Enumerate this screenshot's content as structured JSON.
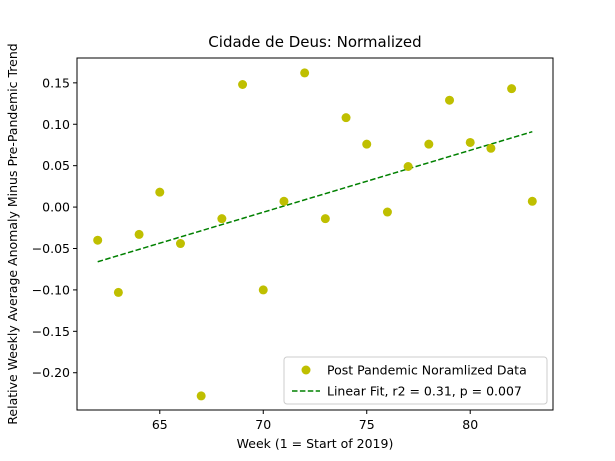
{
  "chart_data": {
    "type": "scatter",
    "title": "Cidade de Deus: Normalized",
    "xlabel": "Week (1 = Start of 2019)",
    "ylabel": "Relative Weekly Average Anomaly Minus Pre-Pandemic Trend",
    "xlim": [
      61,
      84
    ],
    "ylim": [
      -0.245,
      0.18
    ],
    "x_ticks": [
      65,
      70,
      75,
      80
    ],
    "x_tick_labels": [
      "65",
      "70",
      "75",
      "80"
    ],
    "y_ticks": [
      -0.2,
      -0.15,
      -0.1,
      -0.05,
      0.0,
      0.05,
      0.1,
      0.15
    ],
    "y_tick_labels": [
      "−0.20",
      "−0.15",
      "−0.10",
      "−0.05",
      "0.00",
      "0.05",
      "0.10",
      "0.15"
    ],
    "grid": false,
    "legend_position": "lower right",
    "series": [
      {
        "name": "Post Pandemic Noramlized Data",
        "kind": "scatter",
        "color": "#bfbf00",
        "x": [
          62,
          63,
          64,
          65,
          66,
          67,
          68,
          69,
          70,
          71,
          72,
          73,
          74,
          75,
          76,
          77,
          78,
          79,
          80,
          81,
          82,
          83
        ],
        "y": [
          -0.04,
          -0.103,
          -0.033,
          0.018,
          -0.044,
          -0.228,
          -0.014,
          0.148,
          -0.1,
          0.007,
          0.162,
          -0.014,
          0.108,
          0.076,
          -0.006,
          0.049,
          0.076,
          0.129,
          0.078,
          0.071,
          0.143,
          0.007
        ]
      },
      {
        "name": "Linear Fit, r2 = 0.31, p = 0.007",
        "kind": "line",
        "style": "dashed",
        "color": "#008000",
        "x": [
          62,
          83
        ],
        "y": [
          -0.066,
          0.091
        ]
      }
    ]
  }
}
